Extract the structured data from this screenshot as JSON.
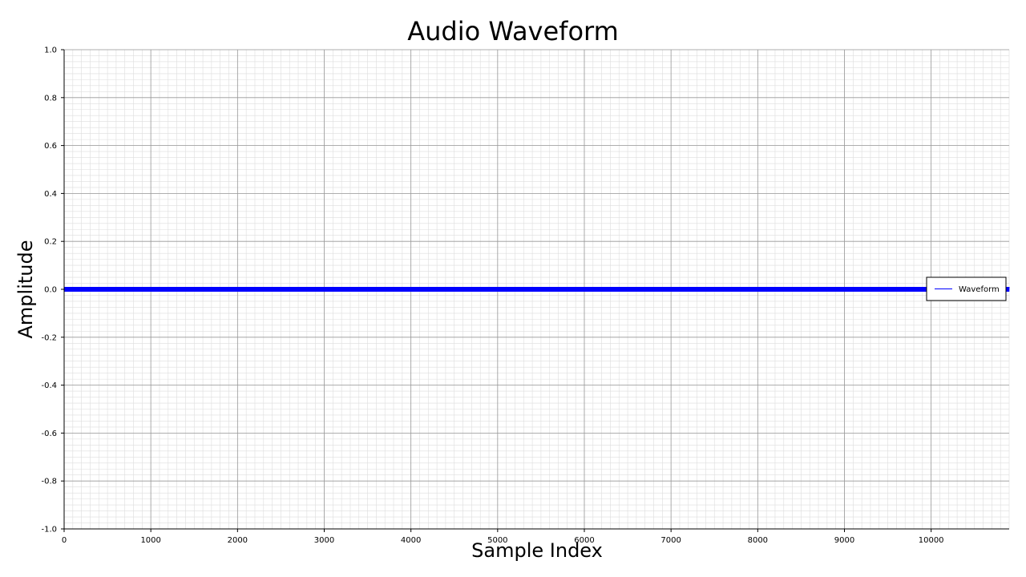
{
  "chart_data": {
    "type": "line",
    "title": "Audio Waveform",
    "xlabel": "Sample Index",
    "ylabel": "Amplitude",
    "xlim": [
      0,
      10900
    ],
    "ylim": [
      -1.0,
      1.0
    ],
    "x_ticks": [
      0,
      1000,
      2000,
      3000,
      4000,
      5000,
      6000,
      7000,
      8000,
      9000,
      10000
    ],
    "y_ticks": [
      1.0,
      0.8,
      0.6,
      0.4,
      0.2,
      0.0,
      -0.2,
      -0.4,
      -0.6,
      -0.8,
      -1.0
    ],
    "x_tick_labels": [
      "0",
      "1000",
      "2000",
      "3000",
      "4000",
      "5000",
      "6000",
      "7000",
      "8000",
      "9000",
      "10000"
    ],
    "y_tick_labels": [
      "1.0",
      "0.8",
      "0.6",
      "0.4",
      "0.2",
      "0.0",
      "-0.2",
      "-0.4",
      "-0.6",
      "-0.8",
      "-1.0"
    ],
    "grid": true,
    "minor_grid": true,
    "legend_position": "right",
    "series": [
      {
        "name": "Waveform",
        "color": "#0000ff",
        "x_start": 0,
        "x_end": 10900,
        "amplitude_range": [
          -0.01,
          0.01
        ]
      }
    ]
  }
}
